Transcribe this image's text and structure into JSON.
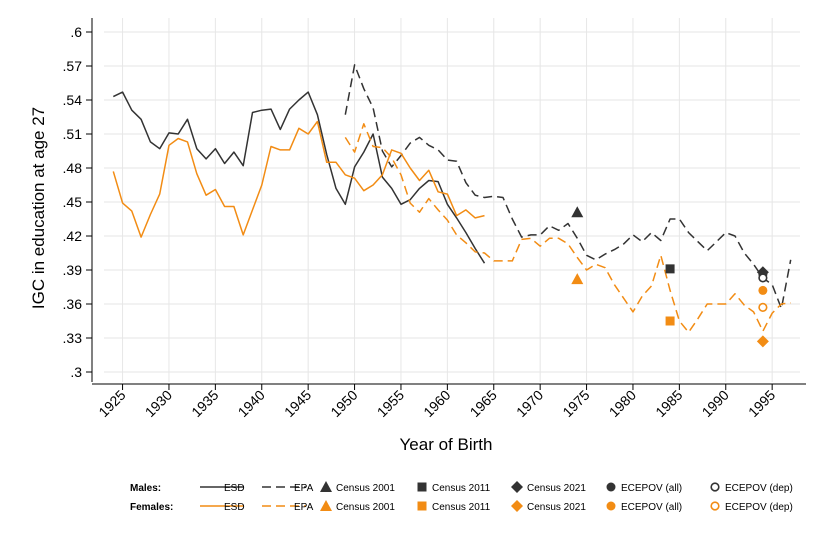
{
  "chart_data": {
    "type": "line",
    "xlabel": "Year of Birth",
    "ylabel": "IGC in education at age 27",
    "xlim": [
      1923,
      1998
    ],
    "ylim": [
      0.3,
      0.6
    ],
    "xticks": [
      1925,
      1930,
      1935,
      1940,
      1945,
      1950,
      1955,
      1960,
      1965,
      1970,
      1975,
      1980,
      1985,
      1990,
      1995
    ],
    "yticks": [
      ".6",
      ".57",
      ".54",
      ".51",
      ".48",
      ".45",
      ".42",
      ".39",
      ".36",
      ".33",
      ".3"
    ],
    "ytick_values": [
      0.6,
      0.57,
      0.54,
      0.51,
      0.48,
      0.45,
      0.42,
      0.39,
      0.36,
      0.33,
      0.3
    ],
    "colors": {
      "males": "#333333",
      "females": "#f28c14",
      "grid": "#e6e6e6"
    },
    "legend": {
      "males_label": "Males:",
      "females_label": "Females:",
      "entries": [
        "ESD",
        "EPA",
        "Census 2001",
        "Census 2011",
        "Census 2021",
        "ECEPOV (all)",
        "ECEPOV (dep)"
      ]
    },
    "series": [
      {
        "name": "Males ESD",
        "group": "males",
        "dash": false,
        "x": [
          1924,
          1925,
          1926,
          1927,
          1928,
          1929,
          1930,
          1931,
          1932,
          1933,
          1934,
          1935,
          1936,
          1937,
          1938,
          1939,
          1940,
          1941,
          1942,
          1943,
          1944,
          1945,
          1946,
          1947,
          1948,
          1949,
          1950,
          1951,
          1952,
          1953,
          1954,
          1955,
          1956,
          1957,
          1958,
          1959,
          1960,
          1961,
          1962,
          1963,
          1964
        ],
        "y": [
          0.543,
          0.547,
          0.531,
          0.523,
          0.503,
          0.497,
          0.511,
          0.51,
          0.523,
          0.497,
          0.488,
          0.497,
          0.484,
          0.494,
          0.482,
          0.529,
          0.531,
          0.532,
          0.514,
          0.532,
          0.54,
          0.547,
          0.527,
          0.492,
          0.462,
          0.448,
          0.481,
          0.494,
          0.51,
          0.472,
          0.462,
          0.448,
          0.452,
          0.462,
          0.469,
          0.468,
          0.448,
          0.436,
          0.423,
          0.409,
          0.396
        ]
      },
      {
        "name": "Males EPA",
        "group": "males",
        "dash": true,
        "x": [
          1949,
          1950,
          1951,
          1952,
          1953,
          1954,
          1955,
          1956,
          1957,
          1958,
          1959,
          1960,
          1961,
          1962,
          1963,
          1964,
          1965,
          1966,
          1967,
          1968,
          1969,
          1970,
          1971,
          1972,
          1973,
          1974,
          1975,
          1976,
          1977,
          1978,
          1979,
          1980,
          1981,
          1982,
          1983,
          1984,
          1985,
          1986,
          1987,
          1988,
          1989,
          1990,
          1991,
          1992,
          1993,
          1994,
          1995,
          1996,
          1997
        ],
        "y": [
          0.527,
          0.571,
          0.55,
          0.533,
          0.495,
          0.481,
          0.491,
          0.502,
          0.507,
          0.5,
          0.496,
          0.487,
          0.486,
          0.467,
          0.456,
          0.454,
          0.455,
          0.454,
          0.435,
          0.419,
          0.421,
          0.421,
          0.429,
          0.425,
          0.431,
          0.418,
          0.403,
          0.399,
          0.404,
          0.408,
          0.413,
          0.421,
          0.415,
          0.423,
          0.416,
          0.435,
          0.435,
          0.423,
          0.415,
          0.407,
          0.415,
          0.423,
          0.42,
          0.405,
          0.395,
          0.383,
          0.377,
          0.356,
          0.399
        ]
      },
      {
        "name": "Females ESD",
        "group": "females",
        "dash": false,
        "x": [
          1924,
          1925,
          1926,
          1927,
          1928,
          1929,
          1930,
          1931,
          1932,
          1933,
          1934,
          1935,
          1936,
          1937,
          1938,
          1939,
          1940,
          1941,
          1942,
          1943,
          1944,
          1945,
          1946,
          1947,
          1948,
          1949,
          1950,
          1951,
          1952,
          1953,
          1954,
          1955,
          1956,
          1957,
          1958,
          1959,
          1960,
          1961,
          1962,
          1963,
          1964
        ],
        "y": [
          0.477,
          0.449,
          0.442,
          0.419,
          0.439,
          0.457,
          0.5,
          0.506,
          0.503,
          0.475,
          0.456,
          0.461,
          0.446,
          0.446,
          0.421,
          0.443,
          0.465,
          0.499,
          0.496,
          0.496,
          0.515,
          0.51,
          0.521,
          0.485,
          0.485,
          0.474,
          0.471,
          0.46,
          0.465,
          0.474,
          0.496,
          0.493,
          0.48,
          0.469,
          0.478,
          0.459,
          0.457,
          0.438,
          0.443,
          0.436,
          0.438
        ]
      },
      {
        "name": "Females EPA",
        "group": "females",
        "dash": true,
        "x": [
          1949,
          1950,
          1951,
          1952,
          1953,
          1954,
          1955,
          1956,
          1957,
          1958,
          1959,
          1960,
          1961,
          1962,
          1963,
          1964,
          1965,
          1966,
          1967,
          1968,
          1969,
          1970,
          1971,
          1972,
          1973,
          1974,
          1975,
          1976,
          1977,
          1978,
          1979,
          1980,
          1981,
          1982,
          1983,
          1984,
          1985,
          1986,
          1987,
          1988,
          1989,
          1990,
          1991,
          1992,
          1993,
          1994,
          1995,
          1996,
          1997
        ],
        "y": [
          0.507,
          0.494,
          0.519,
          0.499,
          0.498,
          0.489,
          0.474,
          0.449,
          0.441,
          0.453,
          0.443,
          0.434,
          0.421,
          0.414,
          0.406,
          0.405,
          0.398,
          0.398,
          0.398,
          0.417,
          0.418,
          0.411,
          0.418,
          0.418,
          0.413,
          0.401,
          0.39,
          0.395,
          0.392,
          0.377,
          0.365,
          0.353,
          0.367,
          0.376,
          0.403,
          0.372,
          0.345,
          0.335,
          0.347,
          0.36,
          0.36,
          0.36,
          0.369,
          0.359,
          0.353,
          0.336,
          0.352,
          0.36,
          0.361
        ]
      }
    ],
    "markers": [
      {
        "label": "Males Census 2001",
        "group": "males",
        "shape": "triangle",
        "x": 1974,
        "y": 0.441
      },
      {
        "label": "Males Census 2011",
        "group": "males",
        "shape": "square",
        "x": 1984,
        "y": 0.391
      },
      {
        "label": "Males Census 2021",
        "group": "males",
        "shape": "diamond",
        "x": 1994,
        "y": 0.388
      },
      {
        "label": "Males ECEPOV (all)",
        "group": "males",
        "shape": "circle",
        "x": 1994,
        "y": 0.386
      },
      {
        "label": "Males ECEPOV (dep)",
        "group": "males",
        "shape": "circle-hollow",
        "x": 1994,
        "y": 0.383
      },
      {
        "label": "Females Census 2001",
        "group": "females",
        "shape": "triangle",
        "x": 1974,
        "y": 0.382
      },
      {
        "label": "Females Census 2011",
        "group": "females",
        "shape": "square",
        "x": 1984,
        "y": 0.345
      },
      {
        "label": "Females Census 2021",
        "group": "females",
        "shape": "diamond",
        "x": 1994,
        "y": 0.327
      },
      {
        "label": "Females ECEPOV (all)",
        "group": "females",
        "shape": "circle",
        "x": 1994,
        "y": 0.372
      },
      {
        "label": "Females ECEPOV (dep)",
        "group": "females",
        "shape": "circle-hollow",
        "x": 1994,
        "y": 0.357
      }
    ]
  }
}
